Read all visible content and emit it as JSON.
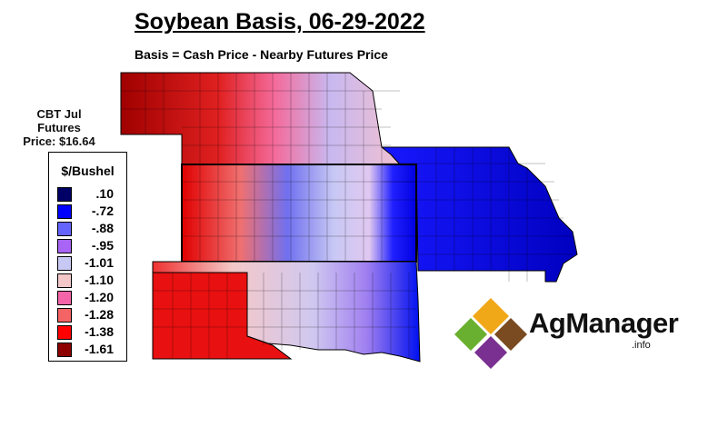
{
  "title": "Soybean Basis, 06-29-2022",
  "subtitle": "Basis = Cash Price - Nearby Futures Price",
  "futures": {
    "line1": "CBT Jul",
    "line2": "Futures",
    "line3": "Price: $16.64"
  },
  "legend": {
    "title": "$/Bushel",
    "items": [
      {
        "value": ".10",
        "color": "#000066"
      },
      {
        "value": "-.72",
        "color": "#0000ff"
      },
      {
        "value": "-.88",
        "color": "#6464ff"
      },
      {
        "value": "-.95",
        "color": "#a864f4"
      },
      {
        "value": "-1.01",
        "color": "#c8c8f4"
      },
      {
        "value": "-1.10",
        "color": "#f4c8c8"
      },
      {
        "value": "-1.20",
        "color": "#f464a8"
      },
      {
        "value": "-1.28",
        "color": "#f46464"
      },
      {
        "value": "-1.38",
        "color": "#ff0000"
      },
      {
        "value": "-1.61",
        "color": "#8c0000"
      }
    ]
  },
  "logo": {
    "name": "AgManager",
    "suffix": ".info"
  }
}
